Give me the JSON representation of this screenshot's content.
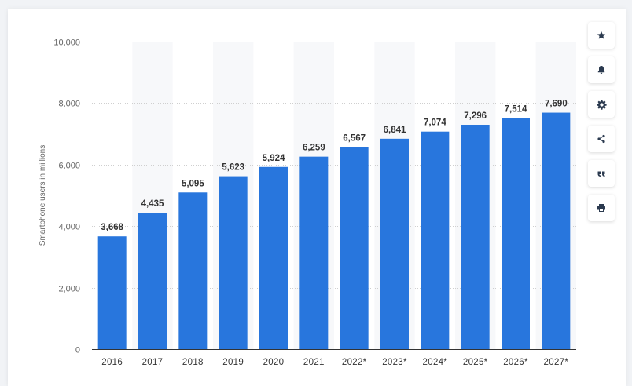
{
  "chart_data": {
    "type": "bar",
    "title": "",
    "xlabel": "",
    "ylabel": "Smartphone users in millions",
    "ylim": [
      0,
      10000
    ],
    "yticks": [
      0,
      2000,
      4000,
      6000,
      8000,
      10000
    ],
    "ytick_labels": [
      "0",
      "2,000",
      "4,000",
      "6,000",
      "8,000",
      "10,000"
    ],
    "grid": true,
    "categories": [
      "2016",
      "2017",
      "2018",
      "2019",
      "2020",
      "2021",
      "2022*",
      "2023*",
      "2024*",
      "2025*",
      "2026*",
      "2027*"
    ],
    "values": [
      3668,
      4435,
      5095,
      5623,
      5924,
      6259,
      6567,
      6841,
      7074,
      7296,
      7514,
      7690
    ],
    "value_labels": [
      "3,668",
      "4,435",
      "5,095",
      "5,623",
      "5,924",
      "6,259",
      "6,567",
      "6,841",
      "7,074",
      "7,296",
      "7,514",
      "7,690"
    ],
    "bar_color": "#2876dd"
  },
  "toolbar": {
    "items": [
      {
        "icon": "star-icon",
        "name": "favorite-button"
      },
      {
        "icon": "bell-icon",
        "name": "notification-button"
      },
      {
        "icon": "gear-icon",
        "name": "settings-button"
      },
      {
        "icon": "share-icon",
        "name": "share-button"
      },
      {
        "icon": "quote-icon",
        "name": "cite-button"
      },
      {
        "icon": "print-icon",
        "name": "print-button"
      }
    ]
  }
}
